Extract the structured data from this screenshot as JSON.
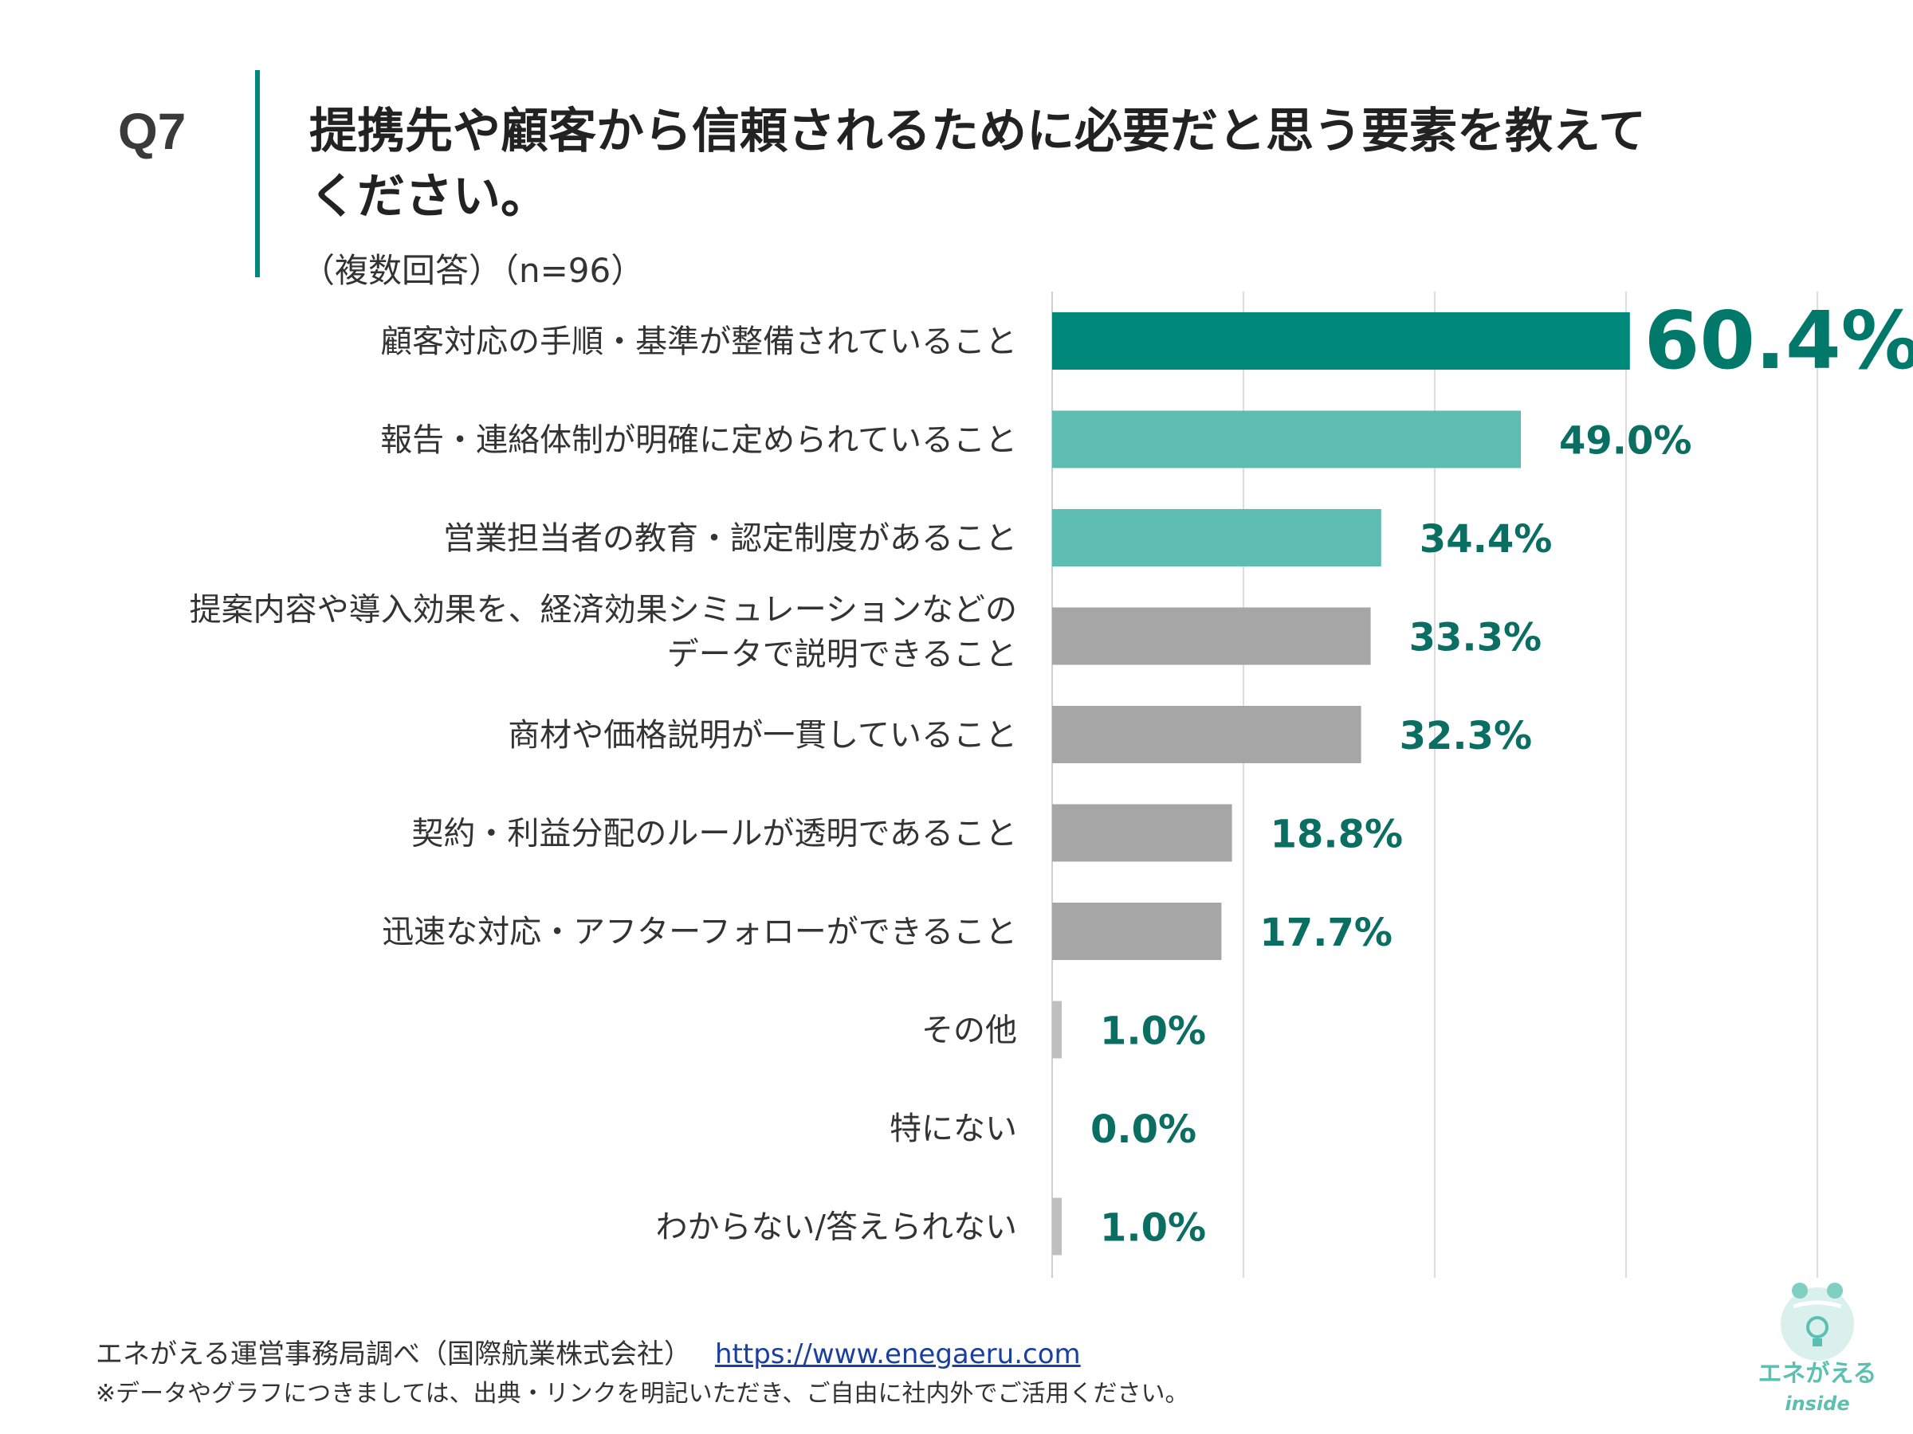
{
  "header": {
    "question_number": "Q7",
    "title": "提携先や顧客から信頼されるために必要だと思う要素を教えてください。",
    "subtitle": "（複数回答）（n=96）"
  },
  "chart_data": {
    "type": "bar",
    "orientation": "horizontal",
    "title": "提携先や顧客から信頼されるために必要だと思う要素を教えてください。",
    "xlabel": "",
    "ylabel": "",
    "xlim": [
      0,
      100
    ],
    "unit": "%",
    "grid": true,
    "categories": [
      "顧客対応の手順・基準が整備されていること",
      "報告・連絡体制が明確に定められていること",
      "営業担当者の教育・認定制度があること",
      "提案内容や導入効果を、経済効果シミュレーションなどのデータで説明できること",
      "商材や価格説明が一貫していること",
      "契約・利益分配のルールが透明であること",
      "迅速な対応・アフターフォローができること",
      "その他",
      "特にない",
      "わからない/答えられない"
    ],
    "category_lines": [
      [
        "顧客対応の手順・基準が整備されていること"
      ],
      [
        "報告・連絡体制が明確に定められていること"
      ],
      [
        "営業担当者の教育・認定制度があること"
      ],
      [
        "提案内容や導入効果を、経済効果シミュレーションなどの",
        "データで説明できること"
      ],
      [
        "商材や価格説明が一貫していること"
      ],
      [
        "契約・利益分配のルールが透明であること"
      ],
      [
        "迅速な対応・アフターフォローができること"
      ],
      [
        "その他"
      ],
      [
        "特にない"
      ],
      [
        "わからない/答えられない"
      ]
    ],
    "values": [
      60.4,
      49.0,
      34.4,
      33.3,
      32.3,
      18.8,
      17.7,
      1.0,
      0.0,
      1.0
    ],
    "value_labels": [
      "60.4%",
      "49.0%",
      "34.4%",
      "33.3%",
      "32.3%",
      "18.8%",
      "17.7%",
      "1.0%",
      "0.0%",
      "1.0%"
    ],
    "bar_colors": [
      "#00897b",
      "#5dbdb2",
      "#5dbdb2",
      "#a6a6a6",
      "#a6a6a6",
      "#a6a6a6",
      "#a6a6a6",
      "#bfbfbf",
      "#bfbfbf",
      "#bfbfbf"
    ]
  },
  "footer": {
    "source": "エネがえる運営事務局調べ（国際航業株式会社）",
    "link": "https://www.enegaeru.com",
    "note": "※データやグラフにつきましては、出典・リンクを明記いただき、ご自由に社内外でご活用ください。"
  },
  "logo": {
    "name": "エネがえる",
    "sub": "inside"
  }
}
